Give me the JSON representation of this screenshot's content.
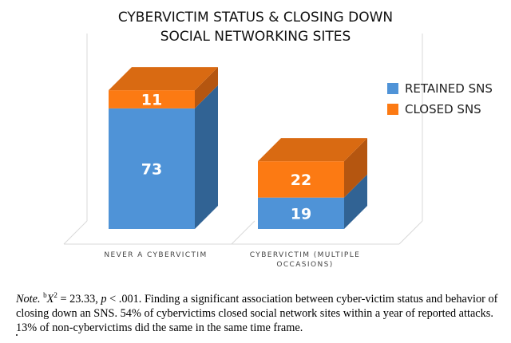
{
  "chart_data": {
    "type": "bar",
    "stacked": true,
    "style": "3d",
    "title_lines": [
      "CYBERVICTIM STATUS & CLOSING DOWN",
      "SOCIAL NETWORKING SITES"
    ],
    "categories": [
      [
        "NEVER A CYBERVICTIM"
      ],
      [
        "CYBERVICTIM (MULTIPLE",
        "OCCASIONS)"
      ]
    ],
    "series": [
      {
        "name": "RETAINED SNS",
        "values": [
          73,
          19
        ],
        "color": "#4f93d7",
        "side_color": "#316394",
        "top_color": "#6aa6e2"
      },
      {
        "name": "CLOSED SNS",
        "values": [
          11,
          22
        ],
        "color": "#fc7a13",
        "side_color": "#b55610",
        "top_color": "#d96a12"
      }
    ],
    "legend_position": "right",
    "grid": false
  },
  "note": {
    "label": "Note.",
    "sup": "b",
    "stat_symbol": "X",
    "stat_exponent": "2",
    "stat_value": " = 23.33, ",
    "p_symbol": "p",
    "p_value": " < .001. Finding a significant association between cyber-victim status and behavior of closing down an SNS. 54% of cybervictims closed social network sites within a year of reported attacks. 13% of non-cybervictims did the same in the same time frame."
  }
}
